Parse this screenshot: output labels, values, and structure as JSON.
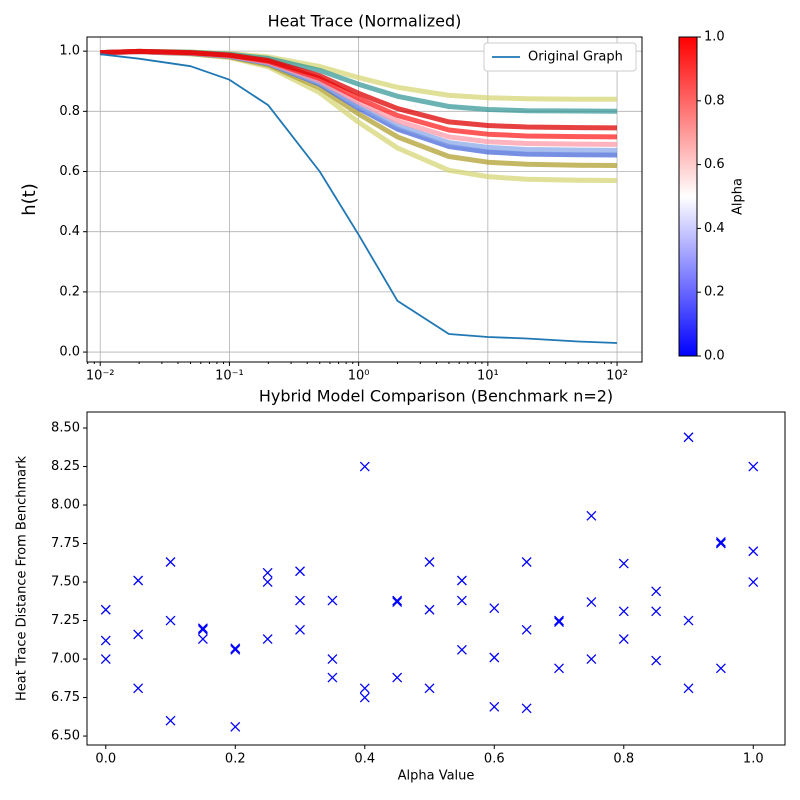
{
  "chart_data": [
    {
      "type": "line",
      "title": "Heat Trace (Normalized)",
      "ylabel": "h(t)",
      "xscale": "log",
      "grid": true,
      "legend": "upper right",
      "x": [
        0.01,
        0.02,
        0.05,
        0.1,
        0.2,
        0.5,
        1,
        2,
        5,
        10,
        20,
        50,
        100
      ],
      "xlim": [
        0.0079,
        156
      ],
      "ylim": [
        -0.033,
        1.047
      ],
      "xticks": [
        {
          "value": 0.01,
          "label": "10⁻²"
        },
        {
          "value": 0.1,
          "label": "10⁻¹"
        },
        {
          "value": 1,
          "label": "10⁰"
        },
        {
          "value": 10,
          "label": "10¹"
        },
        {
          "value": 100,
          "label": "10²"
        }
      ],
      "yticks": [
        {
          "value": 0,
          "label": "0.0"
        },
        0.2,
        0.4,
        0.6,
        0.8,
        {
          "value": 1,
          "label": "1.0"
        }
      ],
      "series": [
        {
          "color": "#d6d676",
          "values": [
            0.995,
            0.999,
            0.997,
            0.992,
            0.981,
            0.949,
            0.912,
            0.88,
            0.853,
            0.845,
            0.842,
            0.84,
            0.84
          ]
        },
        {
          "color": "#d6d676",
          "values": [
            0.995,
            0.998,
            0.991,
            0.979,
            0.948,
            0.862,
            0.764,
            0.678,
            0.604,
            0.583,
            0.574,
            0.571,
            0.57
          ]
        },
        {
          "color": "#3a9a9a",
          "values": [
            0.995,
            0.999,
            0.996,
            0.99,
            0.976,
            0.936,
            0.89,
            0.85,
            0.816,
            0.806,
            0.802,
            0.801,
            0.8
          ]
        },
        {
          "color": "#b0a030",
          "values": [
            0.995,
            0.998,
            0.992,
            0.981,
            0.954,
            0.878,
            0.791,
            0.715,
            0.65,
            0.631,
            0.624,
            0.621,
            0.62
          ]
        },
        {
          "color": "#4a6ad8",
          "values": [
            0.995,
            0.998,
            0.993,
            0.983,
            0.959,
            0.89,
            0.81,
            0.741,
            0.683,
            0.665,
            0.658,
            0.656,
            0.655
          ]
        },
        {
          "color": "#8aa8e8",
          "values": [
            0.995,
            0.998,
            0.993,
            0.984,
            0.96,
            0.894,
            0.819,
            0.753,
            0.696,
            0.68,
            0.673,
            0.671,
            0.67
          ]
        },
        {
          "color": "#ff9aa8",
          "values": [
            0.995,
            0.998,
            0.994,
            0.985,
            0.963,
            0.901,
            0.83,
            0.768,
            0.715,
            0.699,
            0.693,
            0.691,
            0.69
          ]
        },
        {
          "color": "#ff2020",
          "values": [
            0.995,
            0.999,
            0.994,
            0.986,
            0.966,
            0.909,
            0.843,
            0.786,
            0.738,
            0.724,
            0.718,
            0.716,
            0.715
          ]
        },
        {
          "color": "#dd0000",
          "values": [
            0.995,
            0.999,
            0.995,
            0.987,
            0.969,
            0.918,
            0.86,
            0.809,
            0.765,
            0.753,
            0.748,
            0.746,
            0.745
          ]
        },
        {
          "name": "Original Graph",
          "color": "#1f77b4",
          "values": [
            0.99,
            0.975,
            0.95,
            0.905,
            0.82,
            0.6,
            0.39,
            0.17,
            0.06,
            0.05,
            0.045,
            0.035,
            0.03
          ]
        }
      ],
      "colorbar": {
        "label": "Alpha",
        "colors": [
          "#0000ff",
          "#ffffff",
          "#ff0000"
        ],
        "lim": [
          0,
          1
        ],
        "ticks": [
          {
            "value": 0,
            "label": "0.0"
          },
          0.2,
          0.4,
          0.6,
          0.8,
          {
            "value": 1,
            "label": "1.0"
          }
        ]
      }
    },
    {
      "type": "scatter",
      "title": "Hybrid Model Comparison (Benchmark n=2)",
      "xlabel": "Alpha Value",
      "ylabel": "Heat Trace Distance From Benchmark",
      "marker": "x",
      "color": "#0000ff",
      "xlim": [
        -0.029,
        1.049
      ],
      "ylim": [
        6.442,
        8.604
      ],
      "xticks": [
        {
          "value": 0,
          "label": "0.0"
        },
        0.2,
        0.4,
        0.6,
        0.8,
        {
          "value": 1,
          "label": "1.0"
        }
      ],
      "yticks": [
        {
          "value": 6.5,
          "label": "6.50"
        },
        6.75,
        {
          "value": 7,
          "label": "7.00"
        },
        7.25,
        {
          "value": 7.5,
          "label": "7.50"
        },
        7.75,
        {
          "value": 8,
          "label": "8.00"
        },
        8.25,
        {
          "value": 8.5,
          "label": "8.50"
        }
      ],
      "x": [
        0,
        0,
        0,
        0.05,
        0.05,
        0.05,
        0.1,
        0.1,
        0.1,
        0.15,
        0.15,
        0.15,
        0.2,
        0.2,
        0.2,
        0.25,
        0.25,
        0.25,
        0.3,
        0.3,
        0.3,
        0.35,
        0.35,
        0.35,
        0.4,
        0.4,
        0.4,
        0.45,
        0.45,
        0.45,
        0.5,
        0.5,
        0.5,
        0.55,
        0.55,
        0.55,
        0.6,
        0.6,
        0.6,
        0.65,
        0.65,
        0.65,
        0.7,
        0.7,
        0.7,
        0.75,
        0.75,
        0.75,
        0.8,
        0.8,
        0.8,
        0.85,
        0.85,
        0.85,
        0.9,
        0.9,
        0.9,
        0.95,
        0.95,
        0.95,
        1,
        1,
        1
      ],
      "y": [
        7.32,
        7.12,
        7.0,
        7.51,
        7.16,
        6.81,
        7.63,
        7.25,
        6.6,
        7.2,
        7.19,
        7.13,
        7.07,
        7.06,
        6.56,
        7.56,
        7.5,
        7.13,
        7.57,
        7.38,
        7.19,
        7.38,
        7.0,
        6.88,
        8.25,
        6.81,
        6.75,
        7.38,
        7.37,
        6.88,
        7.63,
        7.32,
        6.81,
        7.51,
        7.38,
        7.06,
        7.33,
        7.01,
        6.69,
        7.63,
        7.19,
        6.68,
        7.25,
        7.24,
        6.94,
        7.93,
        7.37,
        7.0,
        7.62,
        7.31,
        7.13,
        7.44,
        7.31,
        6.99,
        8.44,
        7.25,
        6.81,
        7.76,
        7.75,
        6.94,
        8.25,
        7.7,
        7.5
      ]
    }
  ]
}
